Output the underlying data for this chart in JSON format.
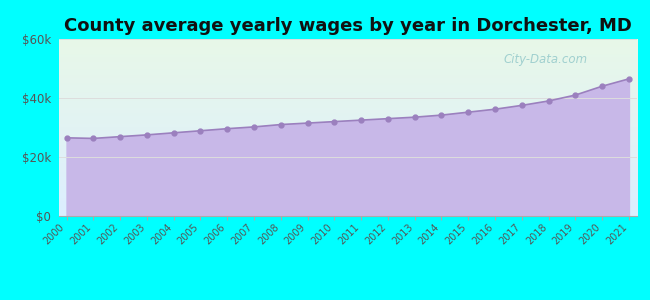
{
  "title": "County average yearly wages by year in Dorchester, MD",
  "years": [
    2000,
    2001,
    2002,
    2003,
    2004,
    2005,
    2006,
    2007,
    2008,
    2009,
    2010,
    2011,
    2012,
    2013,
    2014,
    2015,
    2016,
    2017,
    2018,
    2019,
    2020,
    2021
  ],
  "wages": [
    26500,
    26300,
    26900,
    27500,
    28200,
    28900,
    29600,
    30200,
    31000,
    31500,
    32000,
    32500,
    33000,
    33500,
    34200,
    35200,
    36200,
    37500,
    39000,
    41000,
    44000,
    46500
  ],
  "ylim": [
    0,
    60000
  ],
  "yticks": [
    0,
    20000,
    40000,
    60000
  ],
  "ytick_labels": [
    "$0",
    "$20k",
    "$40k",
    "$60k"
  ],
  "fill_color": "#c8b8e8",
  "line_color": "#9b80be",
  "marker_color": "#9b80be",
  "bg_color_fig": "#00ffff",
  "bg_grad_top": "#e8f8e8",
  "bg_grad_bottom": "#e0eeff",
  "title_fontsize": 13,
  "watermark_text": "City-Data.com",
  "watermark_color": "#99cccc",
  "grid_color": "#dddddd"
}
